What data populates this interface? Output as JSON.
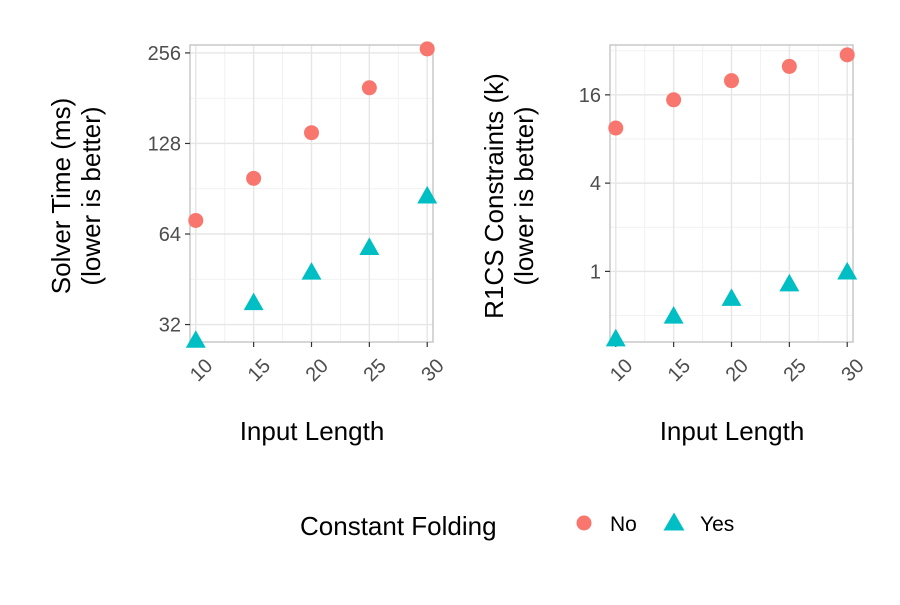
{
  "chart_data": [
    {
      "type": "scatter",
      "xlabel": "Input Length",
      "ylabel": [
        "Solver Time (ms)",
        "(lower is better)"
      ],
      "y_scale": "log2",
      "x_ticks": [
        10,
        15,
        20,
        25,
        30
      ],
      "y_ticks": [
        32,
        64,
        128,
        256
      ],
      "xlim": [
        9.5,
        30.5
      ],
      "ylim": [
        28,
        272
      ],
      "grid": true,
      "series": [
        {
          "name": "No",
          "x": [
            10,
            15,
            20,
            25,
            30
          ],
          "y": [
            71,
            98,
            139,
            196,
            264
          ]
        },
        {
          "name": "Yes",
          "x": [
            10,
            15,
            20,
            25,
            30
          ],
          "y": [
            28.5,
            38,
            48,
            58,
            86
          ]
        }
      ]
    },
    {
      "type": "scatter",
      "xlabel": "Input Length",
      "ylabel": [
        "R1CS Constraints (k)",
        "(lower is better)"
      ],
      "y_scale": "log2",
      "x_ticks": [
        10,
        15,
        20,
        25,
        30
      ],
      "y_ticks": [
        1,
        4,
        16
      ],
      "xlim": [
        9.5,
        30.5
      ],
      "ylim": [
        0.33,
        35
      ],
      "grid": true,
      "series": [
        {
          "name": "No",
          "x": [
            10,
            15,
            20,
            25,
            30
          ],
          "y": [
            9.5,
            14.8,
            20.0,
            25.0,
            30.0
          ]
        },
        {
          "name": "Yes",
          "x": [
            10,
            15,
            20,
            25,
            30
          ],
          "y": [
            0.35,
            0.5,
            0.66,
            0.83,
            1.0
          ]
        }
      ]
    }
  ],
  "legend": {
    "title": "Constant Folding",
    "position": "bottom",
    "entries": [
      {
        "label": "No",
        "shape": "circle",
        "color": "#F8766D"
      },
      {
        "label": "Yes",
        "shape": "triangle",
        "color": "#00BFC4"
      }
    ]
  },
  "colors": {
    "No": "#F8766D",
    "Yes": "#00BFC4",
    "grid": "#e6e6e6",
    "panel_border": "#c8c8c8"
  }
}
